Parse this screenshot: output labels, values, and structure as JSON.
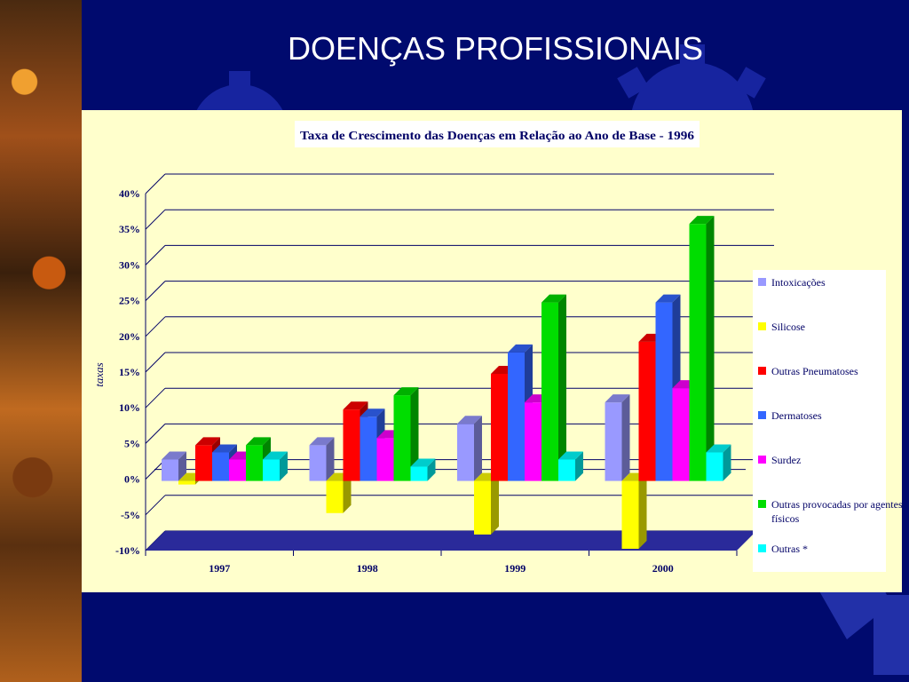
{
  "slide": {
    "title": "DOENÇAS PROFISSIONAIS"
  },
  "colors": {
    "background": "#000a6e",
    "panel": "#ffffcc",
    "floor": "#2a2a9a"
  },
  "chart_data": {
    "type": "bar",
    "title": "Taxa de Crescimento das Doenças em Relação ao Ano de Base - 1996",
    "xlabel": "",
    "ylabel": "taxas",
    "categories": [
      "1997",
      "1998",
      "1999",
      "2000"
    ],
    "ylim": [
      -10,
      40
    ],
    "yticks": [
      40,
      35,
      30,
      25,
      20,
      15,
      10,
      5,
      0,
      -5,
      -10
    ],
    "ytick_labels": [
      "40%",
      "35%",
      "30%",
      "25%",
      "20%",
      "15%",
      "10%",
      "5%",
      "0%",
      "-5%",
      "-10%"
    ],
    "legend_position": "right",
    "grid": true,
    "three_d": true,
    "series": [
      {
        "name": "Intoxicações",
        "color": "#9999ff",
        "values": [
          3,
          5,
          8,
          11
        ]
      },
      {
        "name": "Silicose",
        "color": "#ffff00",
        "values": [
          -0.5,
          -4.5,
          -7.5,
          -9.5
        ]
      },
      {
        "name": "Outras Pneumatoses",
        "color": "#ff0000",
        "values": [
          5,
          10,
          15,
          19.5
        ]
      },
      {
        "name": "Dermatoses",
        "color": "#3366ff",
        "values": [
          4,
          9,
          18,
          25
        ]
      },
      {
        "name": "Surdez",
        "color": "#ff00ff",
        "values": [
          3,
          6,
          11,
          13
        ]
      },
      {
        "name": "Outras provocadas por agentes físicos",
        "color": "#00dd00",
        "values": [
          5,
          12,
          25,
          36
        ]
      },
      {
        "name": "Outras *",
        "color": "#00ffff",
        "values": [
          3,
          2,
          3,
          4
        ]
      }
    ]
  }
}
